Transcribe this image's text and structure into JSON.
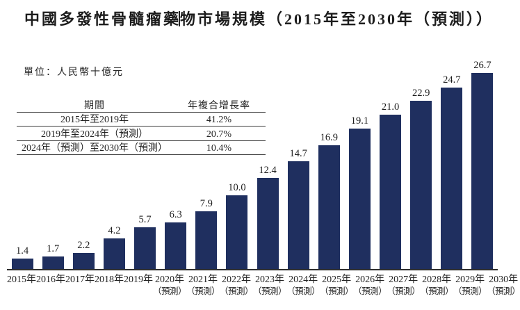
{
  "page": {
    "title_part1": "中國多發性骨髓瘤藥",
    "title_part2": "物市場規模（2015年至2030年（預測））",
    "unit_label": "單位：人民幣十億元"
  },
  "cagr_table": {
    "headers": [
      "期間",
      "年複合增長率"
    ],
    "rows": [
      {
        "period": "2015年至2019年",
        "cagr": "41.2%"
      },
      {
        "period": "2019年至2024年（預測）",
        "cagr": "20.7%"
      },
      {
        "period": "2024年（預測）至2030年（預測）",
        "cagr": "10.4%"
      }
    ]
  },
  "chart_data": {
    "type": "bar",
    "title": "中國多發性骨髓瘤藥物市場規模（2015年至2030年（預測））",
    "unit": "人民幣十億元",
    "xlabel": "",
    "ylabel": "人民幣十億元",
    "ylim": [
      0,
      28
    ],
    "grid": false,
    "legend": "none",
    "categories": [
      "2015年",
      "2016年",
      "2017年",
      "2018年",
      "2019年",
      "2020年（預測）",
      "2021年（預測）",
      "2022年（預測）",
      "2023年（預測）",
      "2024年（預測）",
      "2025年（預測）",
      "2026年（預測）",
      "2027年（預測）",
      "2028年（預測）",
      "2029年（預測）",
      "2030年（預測）"
    ],
    "values": [
      1.4,
      1.7,
      2.2,
      4.2,
      5.7,
      6.3,
      7.9,
      10.0,
      12.4,
      14.7,
      16.9,
      19.1,
      21.0,
      22.9,
      24.7,
      26.7
    ],
    "bar_color": "#1f2f5f"
  }
}
